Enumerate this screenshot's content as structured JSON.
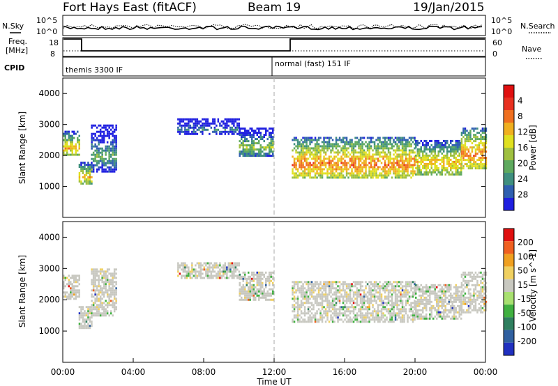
{
  "header": {
    "station": "Fort Hays East (fitACF)",
    "beam": "Beam 19",
    "date": "19/Jan/2015"
  },
  "top_panels": {
    "nsky_label": "N.Sky",
    "nsky_ticks": [
      "10^5",
      "10^0"
    ],
    "nsearch_label": "N.Search",
    "nsearch_ticks": [
      "10^5",
      "10^0"
    ],
    "freq_label_1": "Freq.",
    "freq_label_2": "[MHz]",
    "freq_ticks": [
      "18",
      "8"
    ],
    "nave_label": "Nave",
    "nave_ticks": [
      "60",
      "0"
    ],
    "cpid_label": "CPID",
    "cpid_modes": [
      "themis 3300 IF",
      "normal (fast) 151 IF"
    ]
  },
  "chart_data": [
    {
      "type": "heatmap",
      "panel": "power",
      "xlabel": "",
      "ylabel": "Slant Range [km]",
      "x_range_hours": [
        0,
        24
      ],
      "ylim": [
        0,
        4500
      ],
      "y_ticks": [
        "1000",
        "2000",
        "3000",
        "4000"
      ],
      "colorbar": {
        "label": "Power [dB]",
        "ticks": [
          "4",
          "8",
          "12",
          "16",
          "20",
          "24",
          "28"
        ],
        "colors": [
          "#1f1fe0",
          "#2f5fb0",
          "#3f8f7f",
          "#5faa5f",
          "#9fc040",
          "#e0e020",
          "#f0b020",
          "#f07020",
          "#e83020",
          "#e01010"
        ]
      },
      "bands": [
        {
          "t0": 0.0,
          "t1": 0.9,
          "range": [
            2000,
            2800
          ],
          "level": 6
        },
        {
          "t0": 0.9,
          "t1": 1.6,
          "range": [
            1100,
            1800
          ],
          "level": 6
        },
        {
          "t0": 1.6,
          "t1": 3.0,
          "range": [
            1500,
            3000
          ],
          "level": 3
        },
        {
          "t0": 6.5,
          "t1": 10.0,
          "range": [
            2700,
            3200
          ],
          "level": 2
        },
        {
          "t0": 10.0,
          "t1": 11.9,
          "range": [
            2000,
            2900
          ],
          "level": 4
        },
        {
          "t0": 13.0,
          "t1": 20.0,
          "range": [
            1300,
            2600
          ],
          "level": 7
        },
        {
          "t0": 20.0,
          "t1": 22.6,
          "range": [
            1400,
            2500
          ],
          "level": 6
        },
        {
          "t0": 22.6,
          "t1": 24.0,
          "range": [
            1600,
            2900
          ],
          "level": 7
        }
      ]
    },
    {
      "type": "heatmap",
      "panel": "velocity",
      "xlabel": "Time UT",
      "ylabel": "Slant Range [km]",
      "x_range_hours": [
        0,
        24
      ],
      "ylim": [
        0,
        4500
      ],
      "y_ticks": [
        "1000",
        "2000",
        "3000",
        "4000"
      ],
      "x_ticks": [
        "00:00",
        "04:00",
        "08:00",
        "12:00",
        "16:00",
        "20:00",
        "00:00"
      ],
      "colorbar": {
        "label": "Velocity [m s^-1]",
        "ticks": [
          "200",
          "100",
          "50",
          "15",
          "-15",
          "-50",
          "-100",
          "-200"
        ],
        "colors": [
          "#2030c0",
          "#3060a0",
          "#2f7f5f",
          "#40b040",
          "#a8e070",
          "#c8c8c0",
          "#f0d060",
          "#f0a020",
          "#f06020",
          "#e01010"
        ]
      },
      "bands": [
        {
          "t0": 0.0,
          "t1": 0.9,
          "range": [
            2000,
            2800
          ],
          "level": 5
        },
        {
          "t0": 0.9,
          "t1": 1.6,
          "range": [
            1100,
            1800
          ],
          "level": 5
        },
        {
          "t0": 1.6,
          "t1": 3.0,
          "range": [
            1500,
            3000
          ],
          "level": 5
        },
        {
          "t0": 6.5,
          "t1": 10.0,
          "range": [
            2700,
            3200
          ],
          "level": 5
        },
        {
          "t0": 10.0,
          "t1": 11.9,
          "range": [
            2000,
            2900
          ],
          "level": 5
        },
        {
          "t0": 13.0,
          "t1": 20.0,
          "range": [
            1300,
            2600
          ],
          "level": 5
        },
        {
          "t0": 20.0,
          "t1": 22.6,
          "range": [
            1400,
            2500
          ],
          "level": 5
        },
        {
          "t0": 22.6,
          "t1": 24.0,
          "range": [
            1600,
            2900
          ],
          "level": 5
        }
      ]
    }
  ]
}
